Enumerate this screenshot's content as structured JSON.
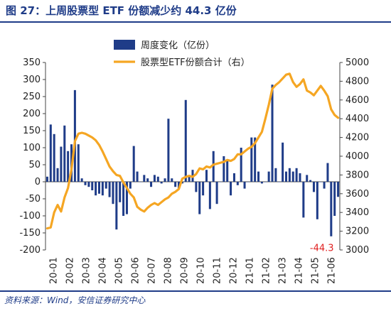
{
  "header": {
    "title": "图 27：上周股票型 ETF 份额减少约 44.3 亿份"
  },
  "footer": {
    "source": "资料来源：Wind，安信证券研究中心"
  },
  "colors": {
    "bar": "#1F3C88",
    "line": "#F5A623",
    "annotation": "#E02020",
    "title": "#1F3C88"
  },
  "chart_data": {
    "type": "bar",
    "title": "",
    "left_axis": {
      "min": -200,
      "max": 350,
      "ticks": [
        350,
        300,
        250,
        200,
        150,
        100,
        50,
        0,
        -50,
        -100,
        -150,
        -200
      ]
    },
    "right_axis": {
      "min": 3000,
      "max": 5000,
      "ticks": [
        5000,
        4800,
        4600,
        4400,
        4200,
        4000,
        3800,
        3600,
        3400,
        3200,
        3000
      ]
    },
    "x_axis": {
      "labels": [
        "20-01",
        "20-02",
        "20-03",
        "20-04",
        "20-05",
        "20-06",
        "20-07",
        "20-08",
        "20-09",
        "20-10",
        "20-11",
        "20-12",
        "21-01",
        "21-02",
        "21-03",
        "21-04",
        "21-05",
        "21-06"
      ]
    },
    "legend": {
      "placement": "top",
      "bar_label": "周度变化（亿份）",
      "line_label": "股票型ETF份额合计（右）"
    },
    "annotation": {
      "text": "-44.3",
      "series_point": "last"
    },
    "series": [
      {
        "name": "周度变化（亿份）",
        "kind": "bar",
        "axis": "left",
        "values": [
          15,
          168,
          140,
          40,
          103,
          165,
          90,
          110,
          269,
          110,
          10,
          -10,
          -15,
          -25,
          -40,
          -35,
          -40,
          -20,
          -45,
          -65,
          -140,
          -60,
          -100,
          -95,
          -20,
          105,
          30,
          0,
          20,
          10,
          -15,
          20,
          15,
          -5,
          10,
          185,
          10,
          -15,
          -20,
          -5,
          240,
          20,
          35,
          -30,
          -95,
          -40,
          35,
          -80,
          90,
          -65,
          0,
          75,
          65,
          -40,
          25,
          -10,
          100,
          -20,
          0,
          130,
          130,
          30,
          -5,
          0,
          30,
          285,
          40,
          0,
          115,
          30,
          40,
          30,
          40,
          25,
          -105,
          20,
          5,
          -30,
          -110,
          0,
          -20,
          55,
          -160,
          -100,
          -44.3
        ]
      },
      {
        "name": "股票型ETF份额合计（右）",
        "kind": "line",
        "axis": "right",
        "values": [
          3230,
          3240,
          3400,
          3480,
          3410,
          3560,
          3660,
          3860,
          4160,
          4240,
          4250,
          4240,
          4220,
          4200,
          4170,
          4120,
          4050,
          3970,
          3890,
          3840,
          3800,
          3790,
          3720,
          3660,
          3600,
          3560,
          3460,
          3430,
          3410,
          3450,
          3480,
          3500,
          3480,
          3510,
          3540,
          3560,
          3600,
          3620,
          3650,
          3760,
          3780,
          3790,
          3780,
          3810,
          3870,
          3860,
          3890,
          3880,
          3910,
          3920,
          3930,
          3940,
          3960,
          3950,
          3970,
          4020,
          4020,
          4050,
          4080,
          4100,
          4140,
          4200,
          4260,
          4400,
          4550,
          4720,
          4760,
          4790,
          4830,
          4870,
          4880,
          4790,
          4740,
          4770,
          4820,
          4700,
          4680,
          4650,
          4700,
          4750,
          4700,
          4640,
          4500,
          4440,
          4410
        ]
      }
    ]
  }
}
